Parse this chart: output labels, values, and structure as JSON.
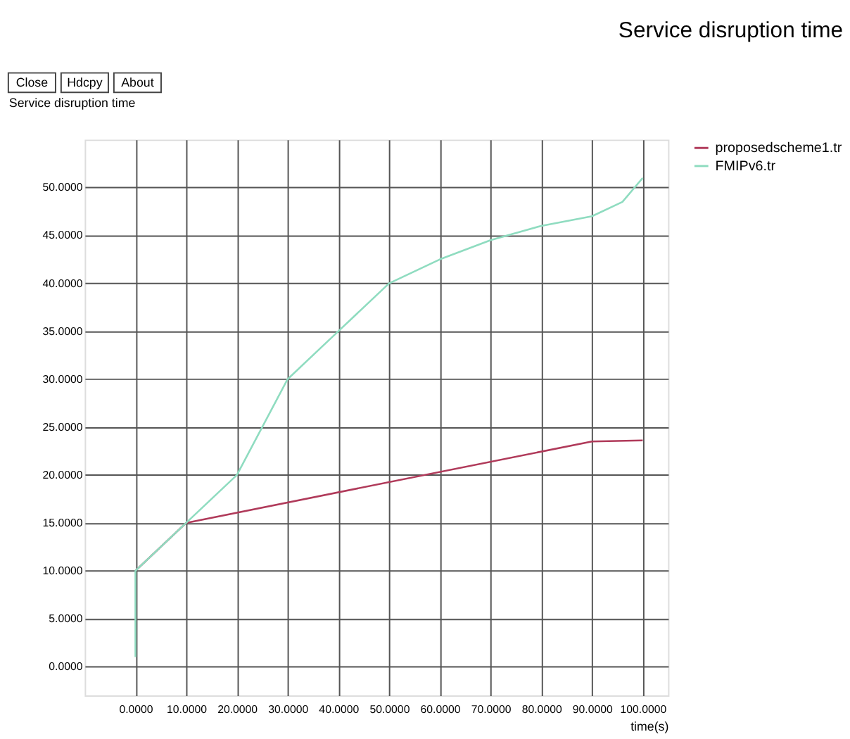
{
  "chart_data": {
    "type": "line",
    "title": "Service disruption time",
    "ylabel": "Service disruption time",
    "xlabel": "time(s)",
    "annotations": [
      "Close",
      "Hdcpy",
      "About"
    ],
    "xlim": [
      -10,
      105
    ],
    "ylim": [
      -3,
      55
    ],
    "xticks": [
      {
        "value": 0,
        "label": "0.0000"
      },
      {
        "value": 10,
        "label": "10.0000"
      },
      {
        "value": 20,
        "label": "20.0000"
      },
      {
        "value": 30,
        "label": "30.0000"
      },
      {
        "value": 40,
        "label": "40.0000"
      },
      {
        "value": 50,
        "label": "50.0000"
      },
      {
        "value": 60,
        "label": "60.0000"
      },
      {
        "value": 70,
        "label": "70.0000"
      },
      {
        "value": 80,
        "label": "80.0000"
      },
      {
        "value": 90,
        "label": "90.0000"
      },
      {
        "value": 100,
        "label": "100.0000"
      }
    ],
    "yticks": [
      {
        "value": 0,
        "label": "0.0000"
      },
      {
        "value": 5,
        "label": "5.0000"
      },
      {
        "value": 10,
        "label": "10.0000"
      },
      {
        "value": 15,
        "label": "15.0000"
      },
      {
        "value": 20,
        "label": "20.0000"
      },
      {
        "value": 25,
        "label": "25.0000"
      },
      {
        "value": 30,
        "label": "30.0000"
      },
      {
        "value": 35,
        "label": "35.0000"
      },
      {
        "value": 40,
        "label": "40.0000"
      },
      {
        "value": 45,
        "label": "45.0000"
      },
      {
        "value": 50,
        "label": "50.0000"
      }
    ],
    "grid": true,
    "legend": "top right",
    "marker": "none",
    "line_style": "solid",
    "series": [
      {
        "name": "proposedscheme1.tr",
        "color": "#b03a5a",
        "x": [
          0,
          10,
          90,
          100
        ],
        "values": [
          10,
          15,
          23.5,
          23.6
        ]
      },
      {
        "name": "FMIPv6.tr",
        "color": "#8fdcc0",
        "x": [
          0,
          0,
          10,
          20,
          30,
          40,
          50,
          60,
          70,
          80,
          90,
          96,
          100
        ],
        "values": [
          1,
          10,
          15,
          20,
          30,
          35,
          40,
          42.5,
          44.5,
          46,
          47,
          48.5,
          51
        ]
      }
    ]
  }
}
